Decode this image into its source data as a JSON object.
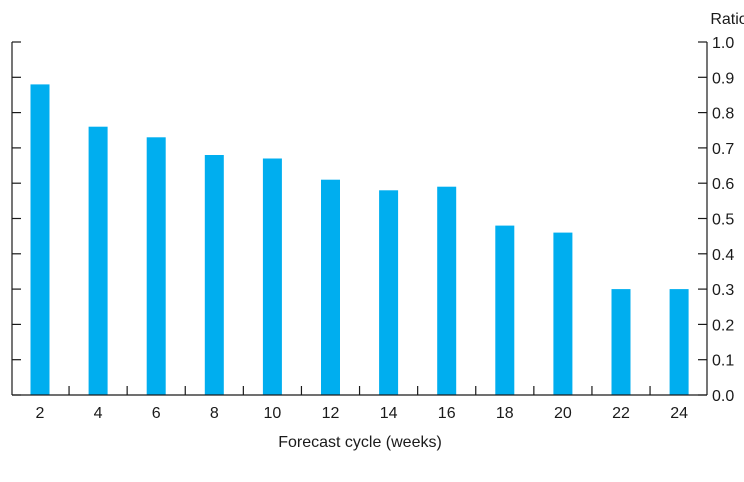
{
  "chart_data": {
    "type": "bar",
    "title": "",
    "xlabel": "Forecast cycle (weeks)",
    "ylabel": "Ratio",
    "categories": [
      "2",
      "4",
      "6",
      "8",
      "10",
      "12",
      "14",
      "16",
      "18",
      "20",
      "22",
      "24"
    ],
    "values": [
      0.88,
      0.76,
      0.73,
      0.68,
      0.67,
      0.61,
      0.58,
      0.59,
      0.48,
      0.46,
      0.3,
      0.3
    ],
    "ylim": [
      0.0,
      1.0
    ],
    "yticks": [
      "0.0",
      "0.1",
      "0.2",
      "0.3",
      "0.4",
      "0.5",
      "0.6",
      "0.7",
      "0.8",
      "0.9",
      "1.0"
    ],
    "y_axis_side": "right",
    "grid": false,
    "bar_color": "#00aeef",
    "axis_color": "#1a1a1a"
  }
}
